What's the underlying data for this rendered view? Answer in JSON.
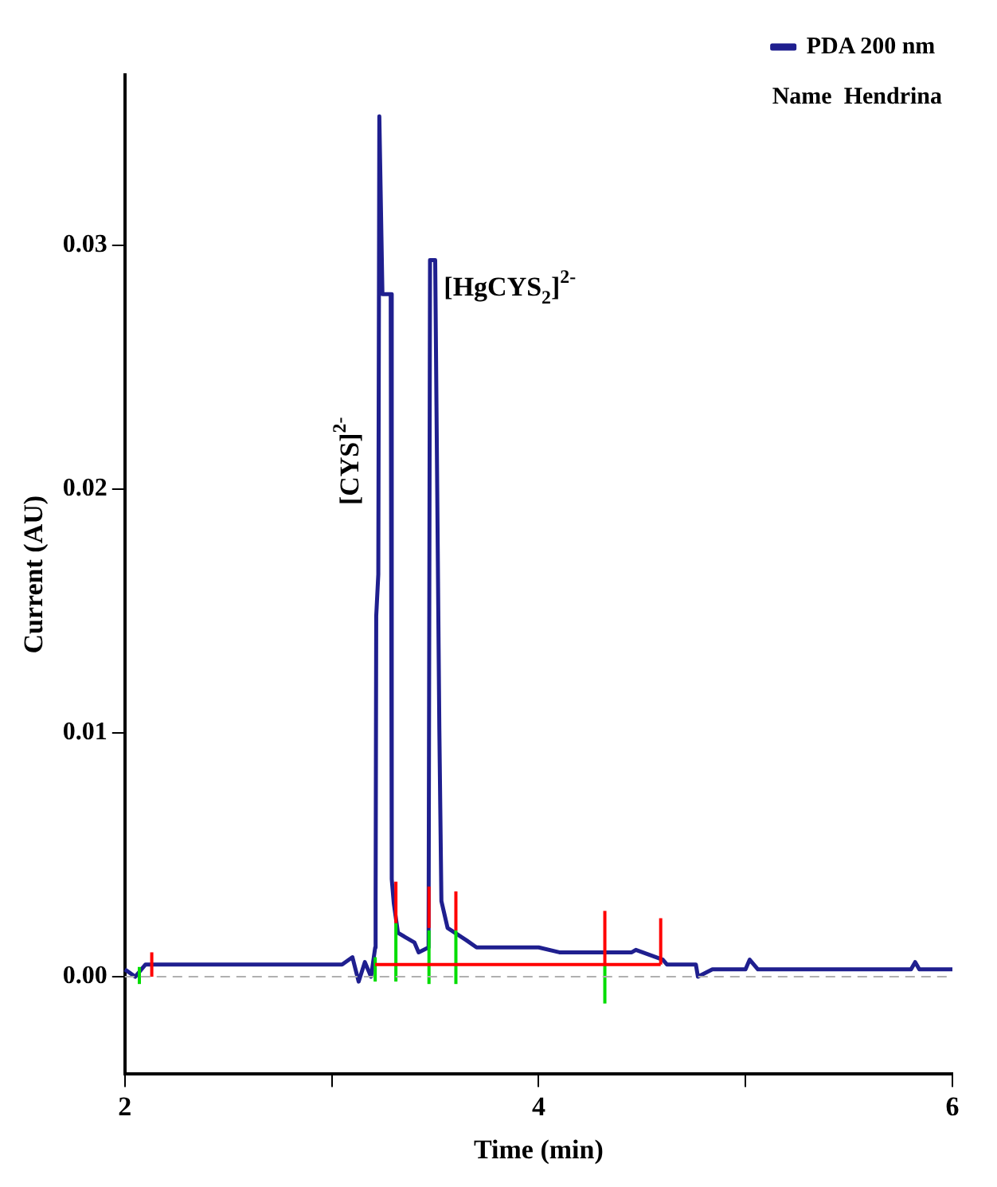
{
  "chart_data": {
    "type": "line",
    "xlabel": "Time (min)",
    "ylabel": "Current (AU)",
    "xlim": [
      2,
      6
    ],
    "xticks": [
      2,
      {
        "value": 3,
        "label": null
      },
      4,
      {
        "value": 5,
        "label": null
      },
      6
    ],
    "ylim": [
      -0.004,
      0.037
    ],
    "yticks": [
      {
        "value": 0,
        "label": "0.00"
      },
      {
        "value": 0.01,
        "label": "0.01"
      },
      {
        "value": 0.02,
        "label": "0.02"
      },
      {
        "value": 0.03,
        "label": "0.03"
      }
    ],
    "legend": "top right",
    "marker": "none",
    "line_style": "solid",
    "grid": false,
    "ref_lines": [
      {
        "axis": "y",
        "value": 0,
        "color": "#b0b0b0",
        "line_style": "dashed"
      }
    ],
    "annotations": [
      "Name  Hendrina",
      {
        "text": "[CYS]$^{2-}$",
        "x": 3.235,
        "y": 0.02
      },
      {
        "text": "[HgCYS$_{2}$]$^{2-}$",
        "x": 3.48,
        "y": 0.0294
      }
    ],
    "series": [
      {
        "name": "PDA 200 nm",
        "color": "#1f1f8f",
        "x": [
          2.0,
          2.05,
          2.1,
          3.05,
          3.1,
          3.13,
          3.16,
          3.19,
          3.21,
          3.212,
          3.215,
          3.225,
          3.23,
          3.245,
          3.285,
          3.29,
          3.3,
          3.32,
          3.4,
          3.42,
          3.468,
          3.475,
          3.5,
          3.52,
          3.53,
          3.56,
          3.65,
          3.7,
          4.0,
          4.1,
          4.45,
          4.47,
          4.6,
          4.62,
          4.76,
          4.77,
          4.84,
          5.0,
          5.02,
          5.06,
          5.8,
          5.82,
          5.84,
          6.0
        ],
        "values": [
          0.0003,
          0.0,
          0.0005,
          0.0005,
          0.0008,
          -0.0002,
          0.0006,
          0.0,
          0.0012,
          0.003,
          0.0148,
          0.0165,
          0.0353,
          0.028,
          0.028,
          0.004,
          0.003,
          0.0018,
          0.0014,
          0.001,
          0.0012,
          0.0294,
          0.0294,
          0.0102,
          0.0031,
          0.002,
          0.0015,
          0.0012,
          0.0012,
          0.001,
          0.001,
          0.0011,
          0.0007,
          0.0005,
          0.0005,
          0.0,
          0.0003,
          0.0003,
          0.0007,
          0.0003,
          0.0003,
          0.0006,
          0.0003,
          0.0003
        ]
      },
      {
        "color": "#ff0000",
        "x": [
          2.13,
          2.13
        ],
        "values": [
          0.0,
          0.001
        ]
      },
      {
        "color": "#ff0000",
        "x": [
          3.21,
          4.59
        ],
        "values": [
          0.0005,
          0.0005
        ]
      },
      {
        "color": "#ff0000",
        "x": [
          3.31,
          3.31
        ],
        "values": [
          0.0022,
          0.0039
        ]
      },
      {
        "color": "#ff0000",
        "x": [
          3.47,
          3.47
        ],
        "values": [
          0.002,
          0.0037
        ]
      },
      {
        "color": "#ff0000",
        "x": [
          3.6,
          3.6
        ],
        "values": [
          0.0019,
          0.0035
        ]
      },
      {
        "color": "#ff0000",
        "x": [
          4.32,
          4.32
        ],
        "values": [
          0.0005,
          0.0027
        ]
      },
      {
        "color": "#ff0000",
        "x": [
          4.59,
          4.59
        ],
        "values": [
          0.0005,
          0.0024
        ]
      },
      {
        "color": "#00dd00",
        "x": [
          2.07,
          2.07
        ],
        "values": [
          -0.0003,
          0.0004
        ]
      },
      {
        "color": "#00dd00",
        "x": [
          3.21,
          3.21
        ],
        "values": [
          -0.0002,
          0.0008
        ]
      },
      {
        "color": "#00dd00",
        "x": [
          3.31,
          3.31
        ],
        "values": [
          -0.0002,
          0.0022
        ]
      },
      {
        "color": "#00dd00",
        "x": [
          3.47,
          3.47
        ],
        "values": [
          -0.0003,
          0.0019
        ]
      },
      {
        "color": "#00dd00",
        "x": [
          3.6,
          3.6
        ],
        "values": [
          -0.0003,
          0.0019
        ]
      },
      {
        "color": "#00dd00",
        "x": [
          4.32,
          4.32
        ],
        "values": [
          -0.0011,
          0.0005
        ]
      }
    ]
  }
}
